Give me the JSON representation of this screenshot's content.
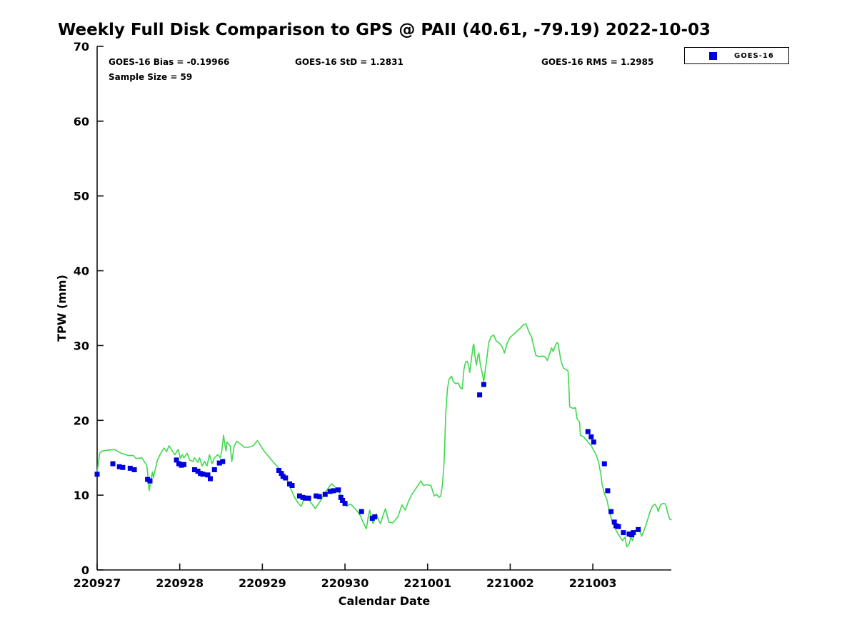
{
  "figure": {
    "title": "Weekly Full Disk Comparison to GPS @ PAII (40.61, -79.19) 2022-10-03",
    "stats": {
      "bias": "GOES-16 Bias = -0.19966",
      "std": "GOES-16 StD = 1.2831",
      "rms": "GOES-16 RMS = 1.2985",
      "sample_size": "Sample Size = 59"
    },
    "legend": {
      "label": "GOES-16",
      "marker": "square",
      "marker_color": "#0000dd"
    }
  },
  "colors": {
    "background": "#ffffff",
    "axis": "#111111",
    "gps_line": "#3fd84f",
    "goes16_marker": "#0000dd",
    "text": "#000000"
  },
  "chart_data": {
    "type": "line",
    "title": "Weekly Full Disk Comparison to GPS @ PAII (40.61, -79.19) 2022-10-03",
    "xlabel": "Calendar Date",
    "ylabel": "TPW (mm)",
    "ylim": [
      0,
      70
    ],
    "yticks": [
      0,
      10,
      20,
      30,
      40,
      50,
      60,
      70
    ],
    "xtick_labels": [
      "220927",
      "220928",
      "220929",
      "220930",
      "221001",
      "221002",
      "221003"
    ],
    "xtick_positions_days": [
      0,
      1,
      2,
      3,
      4,
      5,
      6
    ],
    "xlim_days": [
      0,
      6.95
    ],
    "grid": false,
    "legend_position": "top-right-outside",
    "series": [
      {
        "name": "GPS",
        "type": "line",
        "color": "#3fd84f",
        "x_unit": "days since 220927 00:00 UTC",
        "points": [
          [
            0,
            13.0
          ],
          [
            0.03,
            15.6
          ],
          [
            0.06,
            15.9
          ],
          [
            0.12,
            16.0
          ],
          [
            0.21,
            16.1
          ],
          [
            0.29,
            15.6
          ],
          [
            0.38,
            15.3
          ],
          [
            0.44,
            15.3
          ],
          [
            0.47,
            14.9
          ],
          [
            0.54,
            15.0
          ],
          [
            0.57,
            14.5
          ],
          [
            0.6,
            14.0
          ],
          [
            0.61,
            13.1
          ],
          [
            0.63,
            10.6
          ],
          [
            0.65,
            12.0
          ],
          [
            0.67,
            13.1
          ],
          [
            0.68,
            12.3
          ],
          [
            0.73,
            14.7
          ],
          [
            0.77,
            15.6
          ],
          [
            0.81,
            16.3
          ],
          [
            0.84,
            15.8
          ],
          [
            0.87,
            16.6
          ],
          [
            0.9,
            16.1
          ],
          [
            0.94,
            15.4
          ],
          [
            0.98,
            16.1
          ],
          [
            1.01,
            14.9
          ],
          [
            1.03,
            15.4
          ],
          [
            1.05,
            15.0
          ],
          [
            1.09,
            15.6
          ],
          [
            1.12,
            14.7
          ],
          [
            1.16,
            14.5
          ],
          [
            1.18,
            15.0
          ],
          [
            1.22,
            14.4
          ],
          [
            1.24,
            15.0
          ],
          [
            1.27,
            13.9
          ],
          [
            1.3,
            14.5
          ],
          [
            1.33,
            13.9
          ],
          [
            1.36,
            15.4
          ],
          [
            1.39,
            14.2
          ],
          [
            1.42,
            15.0
          ],
          [
            1.46,
            15.4
          ],
          [
            1.49,
            15.0
          ],
          [
            1.51,
            16.0
          ],
          [
            1.53,
            18.0
          ],
          [
            1.55,
            16.5
          ],
          [
            1.56,
            15.9
          ],
          [
            1.57,
            17.1
          ],
          [
            1.61,
            16.6
          ],
          [
            1.63,
            14.5
          ],
          [
            1.66,
            16.6
          ],
          [
            1.69,
            17.2
          ],
          [
            1.74,
            16.8
          ],
          [
            1.78,
            16.4
          ],
          [
            1.83,
            16.4
          ],
          [
            1.89,
            16.6
          ],
          [
            1.94,
            17.3
          ],
          [
            2.02,
            15.9
          ],
          [
            2.15,
            14.2
          ],
          [
            2.2,
            13.6
          ],
          [
            2.28,
            12.5
          ],
          [
            2.39,
            9.7
          ],
          [
            2.43,
            9.0
          ],
          [
            2.47,
            8.5
          ],
          [
            2.51,
            9.7
          ],
          [
            2.57,
            9.3
          ],
          [
            2.64,
            8.2
          ],
          [
            2.69,
            9.0
          ],
          [
            2.76,
            10.3
          ],
          [
            2.82,
            11.3
          ],
          [
            2.84,
            11.5
          ],
          [
            2.89,
            11.0
          ],
          [
            2.91,
            10.7
          ],
          [
            2.95,
            10.0
          ],
          [
            2.97,
            9.3
          ],
          [
            3.02,
            8.5
          ],
          [
            3.06,
            8.8
          ],
          [
            3.08,
            8.7
          ],
          [
            3.12,
            8.2
          ],
          [
            3.16,
            7.7
          ],
          [
            3.19,
            7.2
          ],
          [
            3.21,
            6.6
          ],
          [
            3.24,
            5.9
          ],
          [
            3.26,
            5.5
          ],
          [
            3.28,
            7.0
          ],
          [
            3.3,
            8.0
          ],
          [
            3.32,
            6.8
          ],
          [
            3.34,
            6.2
          ],
          [
            3.38,
            7.5
          ],
          [
            3.41,
            6.6
          ],
          [
            3.43,
            6.2
          ],
          [
            3.46,
            7.3
          ],
          [
            3.49,
            8.2
          ],
          [
            3.53,
            6.4
          ],
          [
            3.58,
            6.3
          ],
          [
            3.64,
            7.1
          ],
          [
            3.69,
            8.7
          ],
          [
            3.73,
            8.0
          ],
          [
            3.77,
            9.2
          ],
          [
            3.81,
            10.1
          ],
          [
            3.86,
            10.9
          ],
          [
            3.9,
            11.6
          ],
          [
            3.92,
            11.9
          ],
          [
            3.95,
            11.3
          ],
          [
            3.99,
            11.4
          ],
          [
            4.04,
            11.3
          ],
          [
            4.08,
            9.9
          ],
          [
            4.11,
            10.1
          ],
          [
            4.14,
            9.7
          ],
          [
            4.16,
            9.9
          ],
          [
            4.18,
            11.5
          ],
          [
            4.2,
            14.5
          ],
          [
            4.22,
            21.0
          ],
          [
            4.24,
            24.2
          ],
          [
            4.26,
            25.5
          ],
          [
            4.29,
            25.9
          ],
          [
            4.31,
            25.2
          ],
          [
            4.34,
            24.9
          ],
          [
            4.37,
            25.0
          ],
          [
            4.4,
            24.3
          ],
          [
            4.42,
            24.2
          ],
          [
            4.44,
            26.8
          ],
          [
            4.46,
            27.8
          ],
          [
            4.48,
            27.9
          ],
          [
            4.5,
            27.1
          ],
          [
            4.51,
            26.4
          ],
          [
            4.55,
            29.9
          ],
          [
            4.56,
            30.2
          ],
          [
            4.57,
            28.8
          ],
          [
            4.59,
            27.4
          ],
          [
            4.61,
            28.7
          ],
          [
            4.62,
            29.0
          ],
          [
            4.64,
            27.3
          ],
          [
            4.66,
            26.4
          ],
          [
            4.68,
            25.2
          ],
          [
            4.72,
            28.5
          ],
          [
            4.74,
            30.4
          ],
          [
            4.77,
            31.2
          ],
          [
            4.8,
            31.4
          ],
          [
            4.83,
            30.6
          ],
          [
            4.86,
            30.4
          ],
          [
            4.9,
            29.9
          ],
          [
            4.93,
            29.0
          ],
          [
            4.96,
            30.2
          ],
          [
            4.98,
            30.7
          ],
          [
            5.0,
            31.1
          ],
          [
            5.05,
            31.6
          ],
          [
            5.07,
            31.8
          ],
          [
            5.12,
            32.3
          ],
          [
            5.16,
            32.8
          ],
          [
            5.19,
            32.9
          ],
          [
            5.22,
            32.0
          ],
          [
            5.26,
            31.1
          ],
          [
            5.28,
            30.1
          ],
          [
            5.31,
            28.7
          ],
          [
            5.35,
            28.5
          ],
          [
            5.39,
            28.6
          ],
          [
            5.42,
            28.5
          ],
          [
            5.45,
            28.0
          ],
          [
            5.5,
            29.7
          ],
          [
            5.52,
            29.2
          ],
          [
            5.55,
            30.1
          ],
          [
            5.57,
            30.4
          ],
          [
            5.58,
            30.2
          ],
          [
            5.61,
            28.2
          ],
          [
            5.63,
            27.4
          ],
          [
            5.65,
            26.9
          ],
          [
            5.68,
            26.8
          ],
          [
            5.7,
            26.6
          ],
          [
            5.71,
            24.4
          ],
          [
            5.72,
            21.8
          ],
          [
            5.76,
            21.6
          ],
          [
            5.79,
            21.7
          ],
          [
            5.81,
            20.2
          ],
          [
            5.83,
            19.9
          ],
          [
            5.84,
            19.7
          ],
          [
            5.85,
            18.0
          ],
          [
            5.89,
            17.8
          ],
          [
            5.9,
            17.6
          ],
          [
            5.93,
            17.3
          ],
          [
            5.94,
            17.1
          ],
          [
            5.98,
            16.6
          ],
          [
            6.04,
            15.4
          ],
          [
            6.07,
            14.4
          ],
          [
            6.1,
            12.6
          ],
          [
            6.11,
            11.6
          ],
          [
            6.14,
            10.2
          ],
          [
            6.17,
            9.4
          ],
          [
            6.2,
            7.8
          ],
          [
            6.23,
            6.6
          ],
          [
            6.26,
            5.9
          ],
          [
            6.28,
            5.3
          ],
          [
            6.33,
            4.4
          ],
          [
            6.36,
            3.9
          ],
          [
            6.39,
            4.4
          ],
          [
            6.41,
            3.1
          ],
          [
            6.44,
            3.5
          ],
          [
            6.46,
            4.4
          ],
          [
            6.48,
            3.9
          ],
          [
            6.52,
            5.3
          ],
          [
            6.54,
            5.6
          ],
          [
            6.58,
            4.9
          ],
          [
            6.59,
            4.5
          ],
          [
            6.63,
            5.6
          ],
          [
            6.66,
            6.6
          ],
          [
            6.69,
            7.7
          ],
          [
            6.72,
            8.5
          ],
          [
            6.75,
            8.8
          ],
          [
            6.78,
            8.3
          ],
          [
            6.79,
            7.8
          ],
          [
            6.82,
            8.7
          ],
          [
            6.85,
            8.9
          ],
          [
            6.88,
            8.8
          ],
          [
            6.91,
            7.5
          ],
          [
            6.93,
            6.8
          ],
          [
            6.95,
            6.7
          ]
        ]
      },
      {
        "name": "GOES-16",
        "type": "scatter",
        "marker": "square",
        "marker_size_px": 7,
        "color": "#0000dd",
        "sample_size": 59,
        "x_unit": "days since 220927 00:00 UTC",
        "points": [
          [
            0.0,
            12.8
          ],
          [
            0.19,
            14.2
          ],
          [
            0.27,
            13.8
          ],
          [
            0.31,
            13.7
          ],
          [
            0.4,
            13.6
          ],
          [
            0.45,
            13.4
          ],
          [
            0.61,
            12.1
          ],
          [
            0.64,
            11.9
          ],
          [
            0.96,
            14.7
          ],
          [
            0.99,
            14.2
          ],
          [
            1.02,
            14.0
          ],
          [
            1.05,
            14.1
          ],
          [
            1.18,
            13.4
          ],
          [
            1.22,
            13.2
          ],
          [
            1.25,
            12.9
          ],
          [
            1.28,
            12.8
          ],
          [
            1.34,
            12.7
          ],
          [
            1.37,
            12.2
          ],
          [
            1.42,
            13.4
          ],
          [
            1.48,
            14.3
          ],
          [
            1.52,
            14.5
          ],
          [
            2.2,
            13.3
          ],
          [
            2.23,
            12.9
          ],
          [
            2.25,
            12.5
          ],
          [
            2.28,
            12.3
          ],
          [
            2.33,
            11.5
          ],
          [
            2.36,
            11.3
          ],
          [
            2.45,
            9.9
          ],
          [
            2.49,
            9.7
          ],
          [
            2.52,
            9.6
          ],
          [
            2.56,
            9.6
          ],
          [
            2.65,
            9.9
          ],
          [
            2.69,
            9.8
          ],
          [
            2.76,
            10.1
          ],
          [
            2.82,
            10.5
          ],
          [
            2.86,
            10.6
          ],
          [
            2.92,
            10.7
          ],
          [
            2.95,
            9.7
          ],
          [
            2.97,
            9.3
          ],
          [
            3.0,
            8.9
          ],
          [
            3.2,
            7.8
          ],
          [
            3.33,
            6.9
          ],
          [
            3.36,
            7.1
          ],
          [
            4.63,
            23.4
          ],
          [
            4.68,
            24.8
          ],
          [
            5.94,
            18.5
          ],
          [
            5.98,
            17.8
          ],
          [
            6.01,
            17.1
          ],
          [
            6.14,
            14.2
          ],
          [
            6.18,
            10.6
          ],
          [
            6.22,
            7.8
          ],
          [
            6.26,
            6.4
          ],
          [
            6.28,
            5.9
          ],
          [
            6.31,
            5.8
          ],
          [
            6.37,
            5.0
          ],
          [
            6.44,
            4.8
          ],
          [
            6.47,
            4.7
          ],
          [
            6.49,
            5.0
          ],
          [
            6.55,
            5.4
          ]
        ]
      }
    ]
  }
}
